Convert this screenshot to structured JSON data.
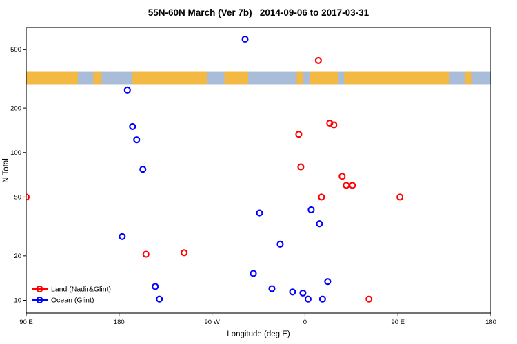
{
  "chart_data": {
    "type": "scatter",
    "title": "55N-60N March (Ver 7b)   2014-09-06 to 2017-03-31",
    "xlabel": "Longitude (deg E)",
    "ylabel": "N Total",
    "x_scale": "linear",
    "y_scale": "log",
    "xlim": [
      90,
      540
    ],
    "ylim": [
      8.2,
      702
    ],
    "x_ticks": [
      {
        "value": 90,
        "label": "90 E"
      },
      {
        "value": 180,
        "label": "180"
      },
      {
        "value": 270,
        "label": "90 W"
      },
      {
        "value": 360,
        "label": "0"
      },
      {
        "value": 450,
        "label": "90 E"
      },
      {
        "value": 540,
        "label": "180"
      }
    ],
    "y_ticks": [
      {
        "value": 10,
        "label": "10"
      },
      {
        "value": 20,
        "label": "20"
      },
      {
        "value": 50,
        "label": "50"
      },
      {
        "value": 100,
        "label": "100"
      },
      {
        "value": 200,
        "label": "200"
      },
      {
        "value": 500,
        "label": "500"
      }
    ],
    "reference_line_y": 50,
    "reference_line_color": "#000000",
    "map_band": {
      "description": "world-map strip of the 55N-60N latitude band (land/ocean)",
      "n_range": [
        290,
        355
      ],
      "ocean_color": "#a9bdd9",
      "land_color": "#f4b942",
      "land_segments_lon": [
        [
          90,
          140
        ],
        [
          155,
          163
        ],
        [
          193,
          265
        ],
        [
          282,
          305
        ],
        [
          352,
          358
        ],
        [
          365,
          392
        ],
        [
          398,
          500
        ],
        [
          515,
          521
        ]
      ]
    },
    "series": [
      {
        "name": "Land (Nadir&Glint)",
        "color": "#ff0000",
        "marker": "open-circle",
        "points": [
          [
            90,
            50
          ],
          [
            206,
            20.5
          ],
          [
            243,
            21
          ],
          [
            354,
            133
          ],
          [
            356,
            80
          ],
          [
            373,
            420
          ],
          [
            376,
            50
          ],
          [
            384,
            158
          ],
          [
            388,
            154
          ],
          [
            396,
            69
          ],
          [
            400,
            60
          ],
          [
            406,
            60
          ],
          [
            422,
            10.2
          ],
          [
            452,
            50
          ]
        ]
      },
      {
        "name": "Ocean (Glint)",
        "color": "#0000ff",
        "marker": "open-circle",
        "points": [
          [
            183,
            27
          ],
          [
            188,
            265
          ],
          [
            193,
            150
          ],
          [
            197,
            122
          ],
          [
            203,
            77
          ],
          [
            215,
            12.4
          ],
          [
            219,
            10.2
          ],
          [
            302,
            585
          ],
          [
            310,
            15.2
          ],
          [
            316,
            39
          ],
          [
            328,
            12
          ],
          [
            336,
            24
          ],
          [
            348,
            11.4
          ],
          [
            358,
            11.2
          ],
          [
            363,
            10.2
          ],
          [
            366,
            41
          ],
          [
            374,
            33
          ],
          [
            377,
            10.2
          ],
          [
            382,
            13.4
          ]
        ]
      }
    ],
    "legend": {
      "position": "bottom-left",
      "entries": [
        "Land (Nadir&Glint)",
        "Ocean (Glint)"
      ]
    }
  }
}
